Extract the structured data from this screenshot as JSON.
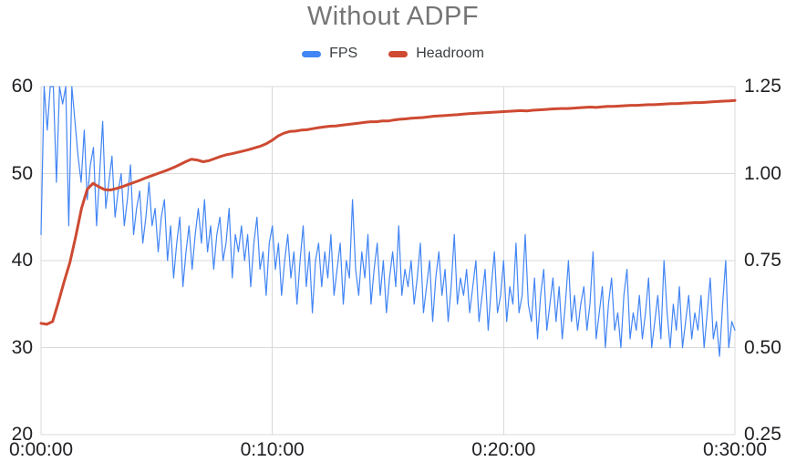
{
  "colors": {
    "fps": "#4285F4",
    "headroom": "#CE4A32",
    "grid": "#D9D9D9",
    "title_text": "#757575",
    "axis_text": "#202124",
    "legend_text": "#3C4043",
    "background": "#FFFFFF"
  },
  "chart_data": {
    "type": "line",
    "title": "Without ADPF",
    "legend_position": "top",
    "grid": true,
    "x_axis": {
      "tick_labels": [
        "0:00:00",
        "0:10:00",
        "0:20:00",
        "0:30:00"
      ],
      "tick_seconds": [
        0,
        600,
        1200,
        1800
      ],
      "range_seconds": [
        0,
        1800
      ]
    },
    "y_axis_left": {
      "series": "FPS",
      "tick_labels": [
        "60",
        "50",
        "40",
        "30",
        "20"
      ],
      "tick_values": [
        60,
        50,
        40,
        30,
        20
      ],
      "range": [
        20,
        60
      ]
    },
    "y_axis_right": {
      "series": "Headroom",
      "tick_labels": [
        "1.25",
        "1.00",
        "0.75",
        "0.50",
        "0.25"
      ],
      "tick_values": [
        1.25,
        1.0,
        0.75,
        0.5,
        0.25
      ],
      "range": [
        0.25,
        1.25
      ]
    },
    "series": [
      {
        "name": "FPS",
        "axis": "left",
        "color": "#4285F4",
        "sample_interval_seconds": 8,
        "values": [
          43,
          60,
          55,
          60,
          60,
          49,
          60,
          58,
          60,
          44,
          60,
          56,
          52,
          49,
          55,
          47,
          51,
          53,
          44,
          50,
          56,
          46,
          49,
          52,
          45,
          48,
          50,
          44,
          47,
          51,
          43,
          46,
          48,
          42,
          45,
          49,
          44,
          46,
          41,
          45,
          47,
          40,
          44,
          38,
          42,
          45,
          37,
          41,
          44,
          39,
          43,
          46,
          42,
          47,
          41,
          44,
          39,
          43,
          45,
          40,
          42,
          46,
          38,
          43,
          41,
          44,
          40,
          43,
          37,
          42,
          45,
          39,
          41,
          36,
          42,
          44,
          39,
          42,
          36,
          40,
          43,
          38,
          41,
          35,
          40,
          44,
          37,
          41,
          34,
          40,
          42,
          37,
          41,
          38,
          43,
          36,
          39,
          42,
          35,
          40,
          38,
          47,
          39,
          36,
          41,
          38,
          43,
          35,
          39,
          42,
          36,
          40,
          34,
          38,
          41,
          37,
          44,
          36,
          39,
          37,
          40,
          35,
          38,
          42,
          34,
          37,
          40,
          33,
          38,
          41,
          36,
          39,
          33,
          37,
          43,
          35,
          38,
          36,
          39,
          34,
          37,
          40,
          33,
          36,
          39,
          32,
          37,
          41,
          34,
          36,
          40,
          33,
          37,
          35,
          42,
          34,
          36,
          43,
          35,
          33,
          38,
          31,
          36,
          39,
          32,
          35,
          38,
          33,
          37,
          31,
          35,
          40,
          33,
          36,
          32,
          35,
          37,
          32,
          35,
          41,
          31,
          34,
          37,
          30,
          35,
          38,
          32,
          34,
          30,
          36,
          39,
          31,
          34,
          32,
          36,
          31,
          34,
          38,
          30,
          33,
          36,
          31,
          40,
          34,
          30,
          35,
          32,
          37,
          30,
          33,
          36,
          31,
          34,
          32,
          36,
          30,
          34,
          38,
          31,
          33,
          29,
          35,
          40,
          30,
          33,
          32
        ]
      },
      {
        "name": "Headroom",
        "axis": "right",
        "color": "#CE4A32",
        "sample_interval_seconds": 15,
        "values": [
          0.57,
          0.567,
          0.575,
          0.63,
          0.69,
          0.745,
          0.82,
          0.9,
          0.955,
          0.972,
          0.962,
          0.954,
          0.953,
          0.957,
          0.962,
          0.968,
          0.974,
          0.98,
          0.987,
          0.993,
          0.999,
          1.005,
          1.011,
          1.018,
          1.026,
          1.034,
          1.041,
          1.039,
          1.034,
          1.037,
          1.043,
          1.049,
          1.054,
          1.057,
          1.061,
          1.065,
          1.069,
          1.074,
          1.079,
          1.086,
          1.096,
          1.108,
          1.116,
          1.121,
          1.122,
          1.125,
          1.126,
          1.129,
          1.132,
          1.134,
          1.136,
          1.137,
          1.139,
          1.141,
          1.143,
          1.145,
          1.147,
          1.149,
          1.149,
          1.151,
          1.151,
          1.154,
          1.156,
          1.157,
          1.159,
          1.16,
          1.161,
          1.163,
          1.165,
          1.166,
          1.167,
          1.168,
          1.169,
          1.171,
          1.172,
          1.173,
          1.174,
          1.175,
          1.176,
          1.177,
          1.178,
          1.179,
          1.18,
          1.181,
          1.18,
          1.182,
          1.183,
          1.184,
          1.185,
          1.186,
          1.187,
          1.187,
          1.188,
          1.189,
          1.19,
          1.191,
          1.19,
          1.192,
          1.193,
          1.193,
          1.194,
          1.195,
          1.196,
          1.196,
          1.197,
          1.198,
          1.198,
          1.199,
          1.2,
          1.201,
          1.201,
          1.202,
          1.203,
          1.204,
          1.204,
          1.205,
          1.206,
          1.207,
          1.208,
          1.209,
          1.21
        ]
      }
    ]
  }
}
